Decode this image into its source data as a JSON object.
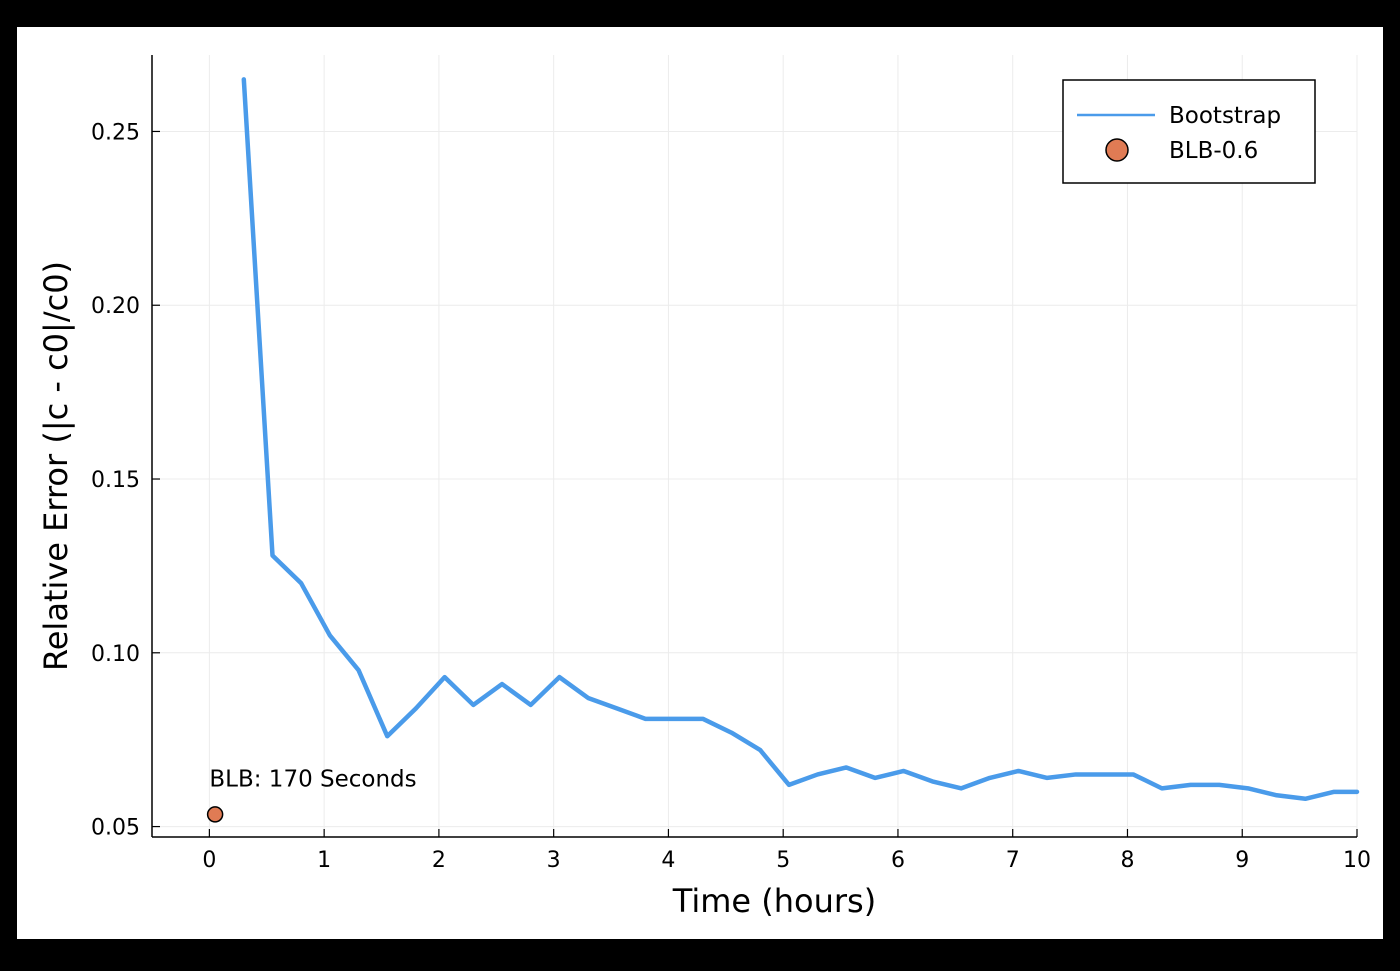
{
  "chart_data": {
    "type": "line",
    "xlabel": "Time (hours)",
    "ylabel": "Relative Error (|c - c0|/c0)",
    "xlim": [
      -0.5,
      10
    ],
    "ylim": [
      0.047,
      0.272
    ],
    "xticks": [
      0,
      1,
      2,
      3,
      4,
      5,
      6,
      7,
      8,
      9,
      10
    ],
    "yticks": [
      0.05,
      0.1,
      0.15,
      0.2,
      0.25
    ],
    "ytick_labels": [
      "0.05",
      "0.10",
      "0.15",
      "0.20",
      "0.25"
    ],
    "grid": true,
    "legend_position": "top-right",
    "series": [
      {
        "name": "Bootstrap",
        "kind": "line",
        "color": "#4a9bea",
        "x": [
          0.3,
          0.55,
          0.8,
          1.05,
          1.3,
          1.55,
          1.8,
          2.05,
          2.3,
          2.55,
          2.8,
          3.05,
          3.3,
          3.55,
          3.8,
          4.05,
          4.3,
          4.55,
          4.8,
          5.05,
          5.3,
          5.55,
          5.8,
          6.05,
          6.3,
          6.55,
          6.8,
          7.05,
          7.3,
          7.55,
          7.8,
          8.05,
          8.3,
          8.55,
          8.8,
          9.05,
          9.3,
          9.55,
          9.8,
          10.0
        ],
        "y": [
          0.265,
          0.128,
          0.12,
          0.105,
          0.095,
          0.076,
          0.084,
          0.093,
          0.085,
          0.091,
          0.085,
          0.093,
          0.087,
          0.084,
          0.081,
          0.081,
          0.081,
          0.077,
          0.072,
          0.062,
          0.065,
          0.067,
          0.064,
          0.066,
          0.063,
          0.061,
          0.064,
          0.066,
          0.064,
          0.065,
          0.065,
          0.065,
          0.061,
          0.062,
          0.062,
          0.061,
          0.059,
          0.058,
          0.06,
          0.06
        ]
      },
      {
        "name": "BLB-0.6",
        "kind": "scatter",
        "color": "#e07b54",
        "x": [
          0.05
        ],
        "y": [
          0.0535
        ]
      }
    ],
    "annotations": [
      {
        "text": "BLB: 170 Seconds",
        "x": 0.0,
        "y": 0.0615
      }
    ]
  }
}
